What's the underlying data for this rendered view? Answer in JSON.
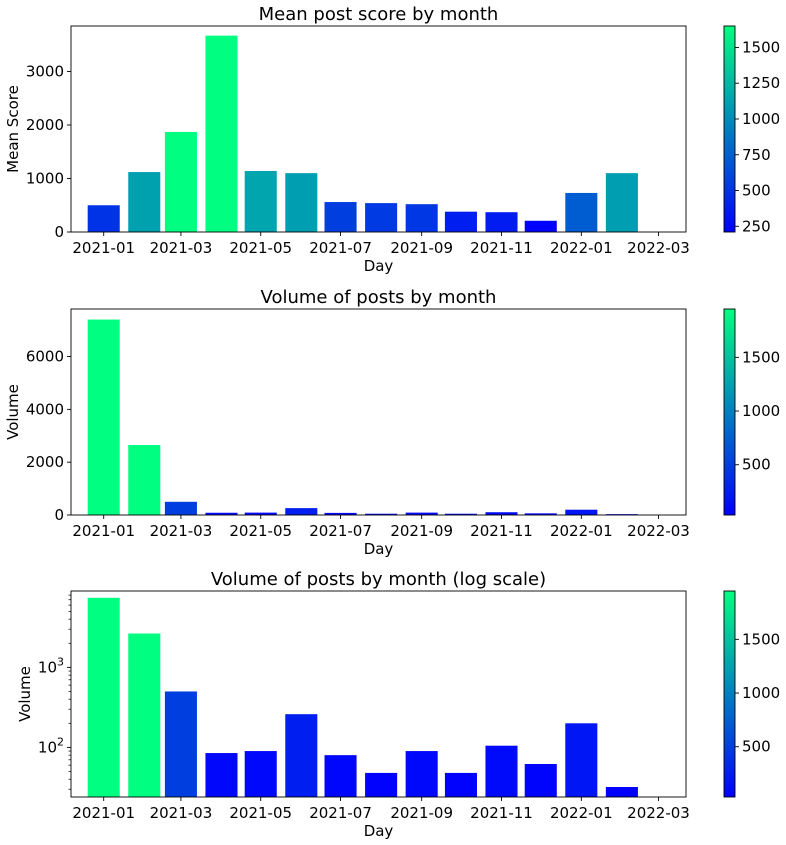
{
  "chart_data": [
    {
      "type": "bar",
      "title": "Mean post score by month",
      "xlabel": "Day",
      "ylabel": "Mean Score",
      "x": [
        "2021-01-01",
        "2021-02-01",
        "2021-03-01",
        "2021-04-01",
        "2021-05-01",
        "2021-06-01",
        "2021-07-01",
        "2021-08-01",
        "2021-09-01",
        "2021-10-01",
        "2021-11-01",
        "2021-12-01",
        "2022-01-01",
        "2022-02-01"
      ],
      "values": [
        500,
        1120,
        1870,
        3670,
        1140,
        1100,
        560,
        540,
        520,
        380,
        370,
        210,
        730,
        1100
      ],
      "color_values": [
        500,
        1120,
        1650,
        1650,
        1140,
        1100,
        560,
        540,
        520,
        380,
        370,
        210,
        730,
        1100
      ],
      "yscale": "linear",
      "ylim": [
        0,
        3850
      ],
      "yticks": [
        0,
        1000,
        2000,
        3000
      ],
      "xlim": [
        "2020-12-07",
        "2022-03-22"
      ],
      "xticks": [
        "2021-01",
        "2021-03",
        "2021-05",
        "2021-07",
        "2021-09",
        "2021-11",
        "2022-01",
        "2022-03"
      ],
      "colorbar": {
        "cmap": "winter",
        "min": 210,
        "max": 1650,
        "ticks": [
          250,
          500,
          750,
          1000,
          1250,
          1500
        ]
      }
    },
    {
      "type": "bar",
      "title": "Volume of posts by month",
      "xlabel": "Day",
      "ylabel": "Volume",
      "x": [
        "2021-01-01",
        "2021-02-01",
        "2021-03-01",
        "2021-04-01",
        "2021-05-01",
        "2021-06-01",
        "2021-07-01",
        "2021-08-01",
        "2021-09-01",
        "2021-10-01",
        "2021-11-01",
        "2021-12-01",
        "2022-01-01",
        "2022-02-01"
      ],
      "values": [
        7400,
        2650,
        500,
        85,
        90,
        260,
        80,
        48,
        90,
        48,
        105,
        62,
        200,
        32
      ],
      "color_values": [
        1950,
        1950,
        500,
        85,
        90,
        260,
        80,
        48,
        90,
        48,
        105,
        62,
        200,
        32
      ],
      "yscale": "linear",
      "ylim": [
        0,
        7800
      ],
      "yticks": [
        0,
        2000,
        4000,
        6000
      ],
      "xlim": [
        "2020-12-07",
        "2022-03-22"
      ],
      "xticks": [
        "2021-01",
        "2021-03",
        "2021-05",
        "2021-07",
        "2021-09",
        "2021-11",
        "2022-01",
        "2022-03"
      ],
      "colorbar": {
        "cmap": "winter",
        "min": 32,
        "max": 1950,
        "ticks": [
          500,
          1000,
          1500
        ]
      }
    },
    {
      "type": "bar",
      "title": "Volume of posts by month (log scale)",
      "xlabel": "Day",
      "ylabel": "Volume",
      "x": [
        "2021-01-01",
        "2021-02-01",
        "2021-03-01",
        "2021-04-01",
        "2021-05-01",
        "2021-06-01",
        "2021-07-01",
        "2021-08-01",
        "2021-09-01",
        "2021-10-01",
        "2021-11-01",
        "2021-12-01",
        "2022-01-01",
        "2022-02-01"
      ],
      "values": [
        7400,
        2650,
        500,
        85,
        90,
        260,
        80,
        48,
        90,
        48,
        105,
        62,
        200,
        32
      ],
      "color_values": [
        1950,
        1950,
        500,
        85,
        90,
        260,
        80,
        48,
        90,
        48,
        105,
        62,
        200,
        32
      ],
      "yscale": "log",
      "ylim": [
        24,
        9000
      ],
      "yticks": [
        100,
        1000
      ],
      "ytick_labels": [
        [
          "10",
          "2"
        ],
        [
          "10",
          "3"
        ]
      ],
      "xlim": [
        "2020-12-07",
        "2022-03-22"
      ],
      "xticks": [
        "2021-01",
        "2021-03",
        "2021-05",
        "2021-07",
        "2021-09",
        "2021-11",
        "2022-01",
        "2022-03"
      ],
      "colorbar": {
        "cmap": "winter",
        "min": 32,
        "max": 1950,
        "ticks": [
          500,
          1000,
          1500
        ]
      }
    }
  ]
}
